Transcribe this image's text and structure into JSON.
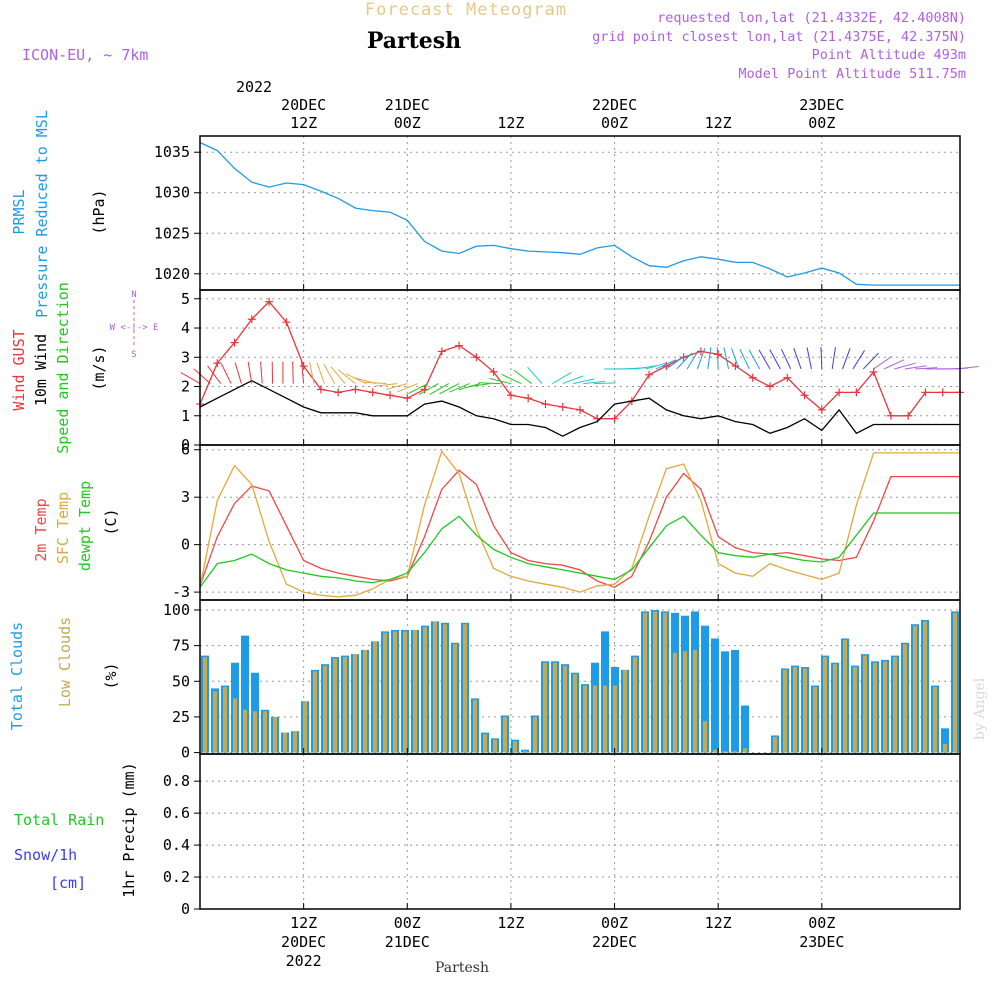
{
  "header": {
    "product": "Forecast Meteogram",
    "location": "Partesh",
    "model": "ICON-EU, ~ 7km",
    "requested": "requested lon,lat (21.4332E, 42.4008N)",
    "grid": "grid point closest lon,lat (21.4375E, 42.375N)",
    "point_alt": "Point Altitude 493m",
    "model_alt": "Model Point Altitude 511.75m",
    "footer": "Partesh",
    "credit": "by Angel"
  },
  "time_axis": {
    "top_year": "2022",
    "top": [
      {
        "h": 12,
        "l1": "20DEC",
        "l2": "12Z"
      },
      {
        "h": 24,
        "l1": "21DEC",
        "l2": "00Z"
      },
      {
        "h": 36,
        "l1": "",
        "l2": "12Z"
      },
      {
        "h": 48,
        "l1": "22DEC",
        "l2": "00Z"
      },
      {
        "h": 60,
        "l1": "",
        "l2": "12Z"
      },
      {
        "h": 72,
        "l1": "23DEC",
        "l2": "00Z"
      }
    ],
    "bottom": [
      {
        "h": 12,
        "l1": "12Z",
        "l2": "20DEC",
        "l3": "2022"
      },
      {
        "h": 24,
        "l1": "00Z",
        "l2": "21DEC",
        "l3": ""
      },
      {
        "h": 36,
        "l1": "12Z",
        "l2": "",
        "l3": ""
      },
      {
        "h": 48,
        "l1": "00Z",
        "l2": "22DEC",
        "l3": ""
      },
      {
        "h": 60,
        "l1": "12Z",
        "l2": "",
        "l3": ""
      },
      {
        "h": 72,
        "l1": "00Z",
        "l2": "23DEC",
        "l3": ""
      }
    ]
  },
  "panel_labels": {
    "pressure": {
      "line1": "PRMSL",
      "line2": "Pressure Reduced to MSL",
      "unit": "(hPa)"
    },
    "wind": {
      "gust": "Wind GUST",
      "wind10": "10m Wind",
      "speed": "Speed and Direction",
      "unit": "(m/s)",
      "compass_n": "N",
      "compass_s": "S",
      "compass_we": "W <-|-> E"
    },
    "temp": {
      "t2m": "2m Temp",
      "sfc": "SFC Temp",
      "dew": "dewpt Temp",
      "unit": "(C)"
    },
    "clouds": {
      "total": "Total Clouds",
      "low": "Low Clouds",
      "unit": "(%)"
    },
    "precip": {
      "total_rain": "Total  Rain",
      "snow": "Snow/1h",
      "snow_unit": "[cm]",
      "axis": "1hr Precip (mm)"
    }
  },
  "colors": {
    "pressure": "#1e9be6",
    "gust": "#e8363c",
    "wind10": "#000000",
    "t2m": "#f04848",
    "sfc": "#e2a93b",
    "dew": "#20c820",
    "total_cloud": "#1e9be6",
    "low_cloud": "#c8a850",
    "title": "#e8c888",
    "meta": "#b060e0",
    "rain_label": "#20c820",
    "snow_label": "#3c3cf0"
  },
  "chart_data": [
    {
      "type": "line",
      "title": "PRMSL Pressure Reduced to MSL",
      "ylabel": "(hPa)",
      "ylim": [
        1018,
        1037
      ],
      "yticks": [
        1020,
        1025,
        1030,
        1035
      ],
      "x_hours": [
        0,
        2,
        4,
        6,
        8,
        10,
        12,
        14,
        16,
        18,
        20,
        22,
        24,
        26,
        28,
        30,
        32,
        34,
        36,
        38,
        40,
        42,
        44,
        46,
        48,
        50,
        52,
        54,
        56,
        58,
        60,
        62,
        64,
        66,
        68,
        70,
        72,
        74,
        76,
        78,
        80,
        82,
        84,
        86,
        88
      ],
      "series": [
        {
          "name": "PRMSL",
          "values": [
            1036.2,
            1035.2,
            1033.0,
            1031.3,
            1030.7,
            1031.2,
            1031.0,
            1030.2,
            1029.3,
            1028.1,
            1027.8,
            1027.6,
            1026.6,
            1024.0,
            1022.8,
            1022.5,
            1023.4,
            1023.5,
            1023.1,
            1022.8,
            1022.7,
            1022.6,
            1022.4,
            1023.2,
            1023.5,
            1022.1,
            1021.0,
            1020.8,
            1021.6,
            1022.1,
            1021.8,
            1021.4,
            1021.4,
            1020.6,
            1019.6,
            1020.1,
            1020.7,
            1020.1,
            1018.7,
            1018.6,
            1018.6,
            1018.6,
            1018.6,
            1018.6,
            1018.6
          ]
        }
      ]
    },
    {
      "type": "line",
      "title": "Wind GUST / 10m Wind Speed and Direction",
      "ylabel": "(m/s)",
      "ylim": [
        0,
        5.3
      ],
      "yticks": [
        0,
        1,
        2,
        3,
        4,
        5
      ],
      "x_hours": [
        0,
        2,
        4,
        6,
        8,
        10,
        12,
        14,
        16,
        18,
        20,
        22,
        24,
        26,
        28,
        30,
        32,
        34,
        36,
        38,
        40,
        42,
        44,
        46,
        48,
        50,
        52,
        54,
        56,
        58,
        60,
        62,
        64,
        66,
        68,
        70,
        72,
        74,
        76,
        78,
        80,
        82,
        84,
        86,
        88
      ],
      "series": [
        {
          "name": "Wind GUST",
          "values": [
            1.4,
            2.8,
            3.5,
            4.3,
            4.9,
            4.2,
            2.7,
            1.9,
            1.8,
            1.9,
            1.8,
            1.7,
            1.6,
            1.9,
            3.2,
            3.4,
            3.0,
            2.5,
            1.7,
            1.6,
            1.4,
            1.3,
            1.2,
            0.9,
            0.9,
            1.5,
            2.4,
            2.7,
            3.0,
            3.2,
            3.1,
            2.7,
            2.3,
            2.0,
            2.3,
            1.7,
            1.2,
            1.8,
            1.8,
            2.5,
            1.0,
            1.0,
            1.8,
            1.8,
            1.8
          ]
        },
        {
          "name": "10m Wind",
          "values": [
            1.3,
            1.6,
            1.9,
            2.2,
            1.9,
            1.6,
            1.3,
            1.1,
            1.1,
            1.1,
            1.0,
            1.0,
            1.0,
            1.4,
            1.5,
            1.3,
            1.0,
            0.9,
            0.7,
            0.7,
            0.6,
            0.3,
            0.6,
            0.8,
            1.4,
            1.5,
            1.6,
            1.2,
            1.0,
            0.9,
            1.0,
            0.8,
            0.7,
            0.4,
            0.6,
            0.9,
            0.5,
            1.2,
            0.4,
            0.7,
            0.7,
            0.7,
            0.7,
            0.7,
            0.7
          ]
        }
      ]
    },
    {
      "type": "line",
      "title": "2m Temp / SFC Temp / dewpt Temp",
      "ylabel": "(C)",
      "ylim": [
        -3.5,
        6.3
      ],
      "yticks": [
        -3,
        0,
        3,
        6
      ],
      "x_hours": [
        0,
        2,
        4,
        6,
        8,
        10,
        12,
        14,
        16,
        18,
        20,
        22,
        24,
        26,
        28,
        30,
        32,
        34,
        36,
        38,
        40,
        42,
        44,
        46,
        48,
        50,
        52,
        54,
        56,
        58,
        60,
        62,
        64,
        66,
        68,
        70,
        72,
        74,
        76,
        78,
        80,
        82,
        84,
        86,
        88
      ],
      "series": [
        {
          "name": "2m Temp",
          "values": [
            -2.6,
            0.5,
            2.6,
            3.7,
            3.4,
            1.2,
            -1.0,
            -1.5,
            -1.8,
            -2.0,
            -2.2,
            -2.3,
            -2.0,
            0.5,
            3.5,
            4.7,
            3.8,
            1.2,
            -0.5,
            -1.0,
            -1.2,
            -1.3,
            -1.6,
            -2.3,
            -2.7,
            -2.0,
            0.2,
            3.0,
            4.5,
            3.5,
            0.5,
            -0.2,
            -0.5,
            -0.6,
            -0.5,
            -0.7,
            -0.9,
            -1.0,
            -0.8,
            1.5,
            4.3,
            4.3,
            4.3,
            4.3,
            4.3
          ]
        },
        {
          "name": "SFC Temp",
          "values": [
            -2.7,
            2.8,
            5.0,
            3.8,
            0.2,
            -2.5,
            -3.0,
            -3.2,
            -3.3,
            -3.2,
            -2.8,
            -2.2,
            -2.0,
            2.5,
            5.9,
            4.5,
            1.0,
            -1.5,
            -2.0,
            -2.3,
            -2.5,
            -2.7,
            -3.0,
            -2.6,
            -2.5,
            -1.5,
            1.8,
            4.8,
            5.1,
            2.8,
            -1.2,
            -1.8,
            -2.0,
            -1.2,
            -1.6,
            -1.9,
            -2.2,
            -1.8,
            2.5,
            5.8,
            5.8,
            5.8,
            5.8,
            5.8,
            5.8
          ]
        },
        {
          "name": "dewpt Temp",
          "values": [
            -2.7,
            -1.2,
            -1.0,
            -0.6,
            -1.2,
            -1.6,
            -1.8,
            -2.0,
            -2.1,
            -2.3,
            -2.4,
            -2.2,
            -1.8,
            -0.5,
            1.0,
            1.8,
            0.6,
            -0.3,
            -0.8,
            -1.2,
            -1.4,
            -1.6,
            -1.8,
            -2.0,
            -2.2,
            -1.6,
            -0.2,
            1.2,
            1.8,
            0.6,
            -0.5,
            -0.7,
            -0.8,
            -0.6,
            -0.8,
            -1.0,
            -1.1,
            -0.8,
            0.6,
            2.0,
            2.0,
            2.0,
            2.0,
            2.0,
            2.0
          ]
        }
      ]
    },
    {
      "type": "bar",
      "title": "Total Clouds / Low Clouds",
      "ylabel": "(%)",
      "ylim": [
        -1,
        107
      ],
      "yticks": [
        0,
        25,
        50,
        75,
        100
      ],
      "series": [
        {
          "name": "Total Clouds",
          "values": [
            68,
            45,
            47,
            63,
            82,
            56,
            30,
            25,
            14,
            15,
            36,
            58,
            62,
            67,
            68,
            69,
            72,
            78,
            85,
            86,
            86,
            86,
            89,
            92,
            91,
            77,
            91,
            38,
            14,
            10,
            26,
            9,
            2,
            26,
            64,
            64,
            62,
            56,
            48,
            63,
            85,
            60,
            58,
            68,
            99,
            100,
            99,
            98,
            96,
            99,
            89,
            80,
            71,
            72,
            33,
            0,
            0,
            12,
            59,
            61,
            60,
            47,
            68,
            63,
            80,
            61,
            69,
            64,
            65,
            68,
            77,
            90,
            93,
            47,
            17,
            99
          ]
        },
        {
          "name": "Low Clouds",
          "values": [
            67,
            43,
            46,
            38,
            30,
            29,
            29,
            25,
            14,
            15,
            36,
            57,
            61,
            66,
            67,
            69,
            72,
            78,
            84,
            85,
            85,
            86,
            88,
            92,
            90,
            76,
            90,
            37,
            13,
            9,
            25,
            8,
            1,
            25,
            63,
            63,
            61,
            55,
            47,
            47,
            47,
            47,
            58,
            67,
            98,
            99,
            98,
            70,
            71,
            72,
            22,
            2,
            1,
            1,
            3,
            0,
            0,
            11,
            58,
            60,
            59,
            46,
            67,
            62,
            79,
            60,
            68,
            63,
            64,
            67,
            76,
            89,
            92,
            46,
            6,
            98
          ]
        }
      ]
    },
    {
      "type": "bar",
      "title": "1hr Precip",
      "ylabel": "1hr Precip (mm)",
      "ylim": [
        0,
        0.97
      ],
      "yticks": [
        0,
        0.2,
        0.4,
        0.6,
        0.8
      ],
      "series": [
        {
          "name": "Total Rain",
          "values": []
        }
      ]
    }
  ]
}
